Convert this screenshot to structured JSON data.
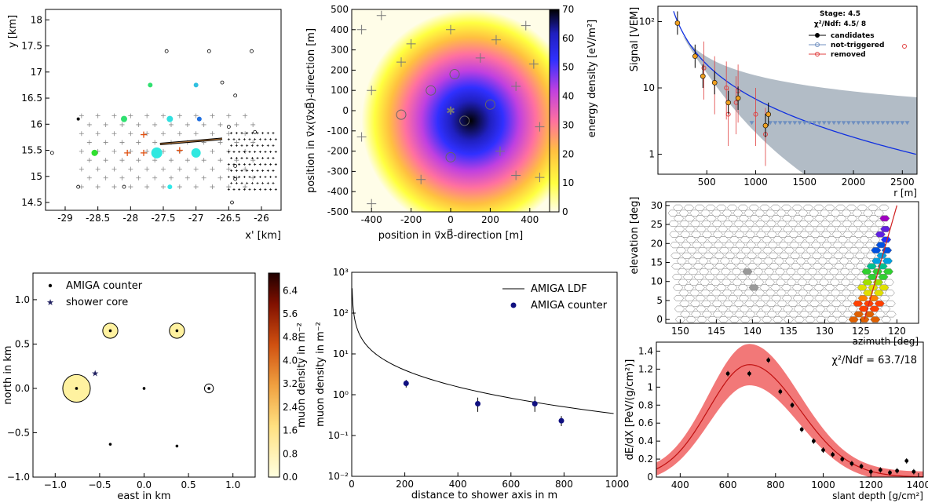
{
  "chart_data": [
    {
      "id": "footprint",
      "type": "scatter",
      "ylabel": "y [km]",
      "xlabel": "x' [km]",
      "xticks": [
        "-29",
        "-28.5",
        "-28",
        "-27.5",
        "-27",
        "-26.5",
        "-26"
      ],
      "yticks": [
        "14.5",
        "15",
        "15.5",
        "16",
        "16.5",
        "17",
        "17.5",
        "18"
      ],
      "xlim": [
        -29.3,
        -25.7
      ],
      "ylim": [
        14.35,
        18.2
      ],
      "stations": [
        {
          "x": -27.6,
          "y": 15.45,
          "c": "#30e8e0",
          "s": 7
        },
        {
          "x": -27.0,
          "y": 15.45,
          "c": "#30e8e0",
          "s": 6
        },
        {
          "x": -28.55,
          "y": 15.45,
          "c": "#30e030",
          "s": 4
        },
        {
          "x": -28.1,
          "y": 16.1,
          "c": "#30e070",
          "s": 4
        },
        {
          "x": -27.4,
          "y": 16.1,
          "c": "#30e0e0",
          "s": 4
        },
        {
          "x": -26.95,
          "y": 16.1,
          "c": "#2070e0",
          "s": 3
        },
        {
          "x": -27.7,
          "y": 16.75,
          "c": "#30e070",
          "s": 3
        },
        {
          "x": -27.0,
          "y": 16.75,
          "c": "#30c0e0",
          "s": 3
        },
        {
          "x": -27.4,
          "y": 14.8,
          "c": "#30e8e8",
          "s": 3
        },
        {
          "x": -28.8,
          "y": 16.1,
          "c": "#000000",
          "s": 2
        }
      ],
      "core_line": {
        "x1": -27.55,
        "y1": 15.62,
        "x2": -26.6,
        "y2": 15.72
      }
    },
    {
      "id": "radio",
      "type": "heatmap",
      "xlabel": "position in v⃗xB⃗-direction [m]",
      "ylabel": "position in v⃗x(v⃗xB⃗)-direction [m]",
      "zlabel": "energy density [eV/m²]",
      "xticks": [
        "-400",
        "-200",
        "0",
        "200",
        "400"
      ],
      "yticks": [
        "-500",
        "-400",
        "-300",
        "-200",
        "-100",
        "0",
        "100",
        "200",
        "300",
        "400",
        "500"
      ],
      "zticks": [
        "0",
        "10",
        "20",
        "30",
        "40",
        "50",
        "60",
        "70"
      ],
      "xlim": [
        -500,
        500
      ],
      "ylim": [
        -500,
        500
      ],
      "zlim": [
        0,
        70
      ],
      "peak": {
        "x": 100,
        "y": -50
      },
      "antennas": [
        {
          "x": -250,
          "y": -20
        },
        {
          "x": -100,
          "y": 100
        },
        {
          "x": 20,
          "y": 180
        },
        {
          "x": 200,
          "y": 30
        },
        {
          "x": 70,
          "y": -50
        },
        {
          "x": 0,
          "y": -230
        }
      ]
    },
    {
      "id": "ldf",
      "type": "scatter",
      "xlabel": "r [m]",
      "ylabel": "Signal [VEM]",
      "xticks": [
        "500",
        "1000",
        "1500",
        "2000",
        "2500"
      ],
      "yticks": [
        "1",
        "10",
        "10²"
      ],
      "xlim": [
        0,
        2650
      ],
      "ylim": [
        0.5,
        170
      ],
      "title_stage": "Stage: 4.5",
      "title_chi": "χ²/Ndf: 4.5/ 8",
      "legend": [
        "candidates",
        "not-triggered",
        "removed"
      ],
      "candidates": [
        {
          "x": 200,
          "y": 95
        },
        {
          "x": 380,
          "y": 30
        },
        {
          "x": 460,
          "y": 15
        },
        {
          "x": 580,
          "y": 12
        },
        {
          "x": 720,
          "y": 6
        },
        {
          "x": 820,
          "y": 7
        },
        {
          "x": 1100,
          "y": 2.7
        },
        {
          "x": 1130,
          "y": 4
        }
      ],
      "not_triggered_x": [
        960,
        1150,
        1200,
        1250,
        1300,
        1350,
        1400,
        1450,
        1500,
        1550,
        1600,
        1650,
        1700,
        1750,
        1800,
        1850,
        1900,
        1950,
        2000,
        2050,
        2100,
        2150,
        2200,
        2250,
        2300,
        2350,
        2400,
        2450,
        2500,
        2550
      ],
      "not_triggered_y": 3.0
    },
    {
      "id": "fd_camera",
      "type": "heatmap",
      "xlabel": "azimuth [deg]",
      "ylabel": "elevation [deg]",
      "xticks": [
        "150",
        "145",
        "140",
        "135",
        "130",
        "125",
        "120"
      ],
      "yticks": [
        "0",
        "5",
        "10",
        "15",
        "20",
        "25",
        "30"
      ],
      "xlim": [
        152,
        117
      ],
      "ylim": [
        -1,
        31
      ]
    },
    {
      "id": "amiga",
      "type": "scatter",
      "xlabel": "east in km",
      "ylabel": "north in km",
      "zlabel": "muon density in m⁻²",
      "xticks": [
        "−1.0",
        "−0.5",
        "0.0",
        "0.5",
        "1.0"
      ],
      "yticks": [
        "−1.0",
        "−0.5",
        "0.0",
        "0.5",
        "1.0"
      ],
      "zticks": [
        "0.0",
        "0.8",
        "1.6",
        "2.4",
        "3.2",
        "4.0",
        "4.8",
        "5.6",
        "6.4"
      ],
      "xlim": [
        -1.25,
        1.25
      ],
      "ylim": [
        -1.0,
        1.3
      ],
      "zlim": [
        0,
        7.0
      ],
      "legend": [
        "AMIGA counter",
        "shower core"
      ],
      "counters": [
        {
          "x": -0.38,
          "y": 0.65,
          "r": 0.085
        },
        {
          "x": 0.37,
          "y": 0.65,
          "r": 0.085
        },
        {
          "x": -0.76,
          "y": 0.0,
          "r": 0.155
        },
        {
          "x": 0.0,
          "y": 0.0,
          "r": 0
        },
        {
          "x": 0.73,
          "y": 0.0,
          "r": 0.05
        },
        {
          "x": -0.38,
          "y": -0.63,
          "r": 0
        },
        {
          "x": 0.37,
          "y": -0.65,
          "r": 0
        }
      ],
      "core": {
        "x": -0.55,
        "y": 0.17
      }
    },
    {
      "id": "muon_ldf",
      "type": "scatter",
      "xlabel": "distance to shower axis in m",
      "ylabel": "muon density in m⁻²",
      "xticks": [
        "0",
        "200",
        "400",
        "600",
        "800",
        "1000"
      ],
      "yticks": [
        "10⁻²",
        "10⁻¹",
        "10⁰",
        "10¹",
        "10²",
        "10³"
      ],
      "xlim": [
        0,
        1000
      ],
      "ylim": [
        0.01,
        1000
      ],
      "legend": [
        "AMIGA LDF",
        "AMIGA counter"
      ],
      "points": [
        {
          "x": 205,
          "y": 1.9,
          "lo": 1.5,
          "hi": 2.3
        },
        {
          "x": 475,
          "y": 0.6,
          "lo": 0.38,
          "hi": 0.85
        },
        {
          "x": 690,
          "y": 0.6,
          "lo": 0.38,
          "hi": 0.9
        },
        {
          "x": 790,
          "y": 0.23,
          "lo": 0.17,
          "hi": 0.3
        }
      ]
    },
    {
      "id": "longitudinal",
      "type": "scatter",
      "xlabel": "slant depth [g/cm²]",
      "ylabel": "dE/dX [PeV/(g/cm²)]",
      "xticks": [
        "400",
        "600",
        "800",
        "1000",
        "1200",
        "1400"
      ],
      "yticks": [
        "0",
        "0.2",
        "0.4",
        "0.6",
        "0.8",
        "1",
        "1.2",
        "1.4"
      ],
      "xlim": [
        300,
        1420
      ],
      "ylim": [
        0,
        1.5
      ],
      "annotation": "χ²/Ndf = 63.7/18",
      "points": [
        {
          "x": 600,
          "y": 1.15
        },
        {
          "x": 690,
          "y": 1.15
        },
        {
          "x": 770,
          "y": 1.3
        },
        {
          "x": 820,
          "y": 0.95
        },
        {
          "x": 870,
          "y": 0.8
        },
        {
          "x": 910,
          "y": 0.53
        },
        {
          "x": 960,
          "y": 0.4
        },
        {
          "x": 1000,
          "y": 0.3
        },
        {
          "x": 1040,
          "y": 0.25
        },
        {
          "x": 1080,
          "y": 0.2
        },
        {
          "x": 1120,
          "y": 0.15
        },
        {
          "x": 1160,
          "y": 0.12
        },
        {
          "x": 1200,
          "y": 0.06
        },
        {
          "x": 1240,
          "y": 0.08
        },
        {
          "x": 1280,
          "y": 0.05
        },
        {
          "x": 1310,
          "y": 0.07
        },
        {
          "x": 1350,
          "y": 0.18
        },
        {
          "x": 1380,
          "y": 0.06
        }
      ]
    }
  ]
}
